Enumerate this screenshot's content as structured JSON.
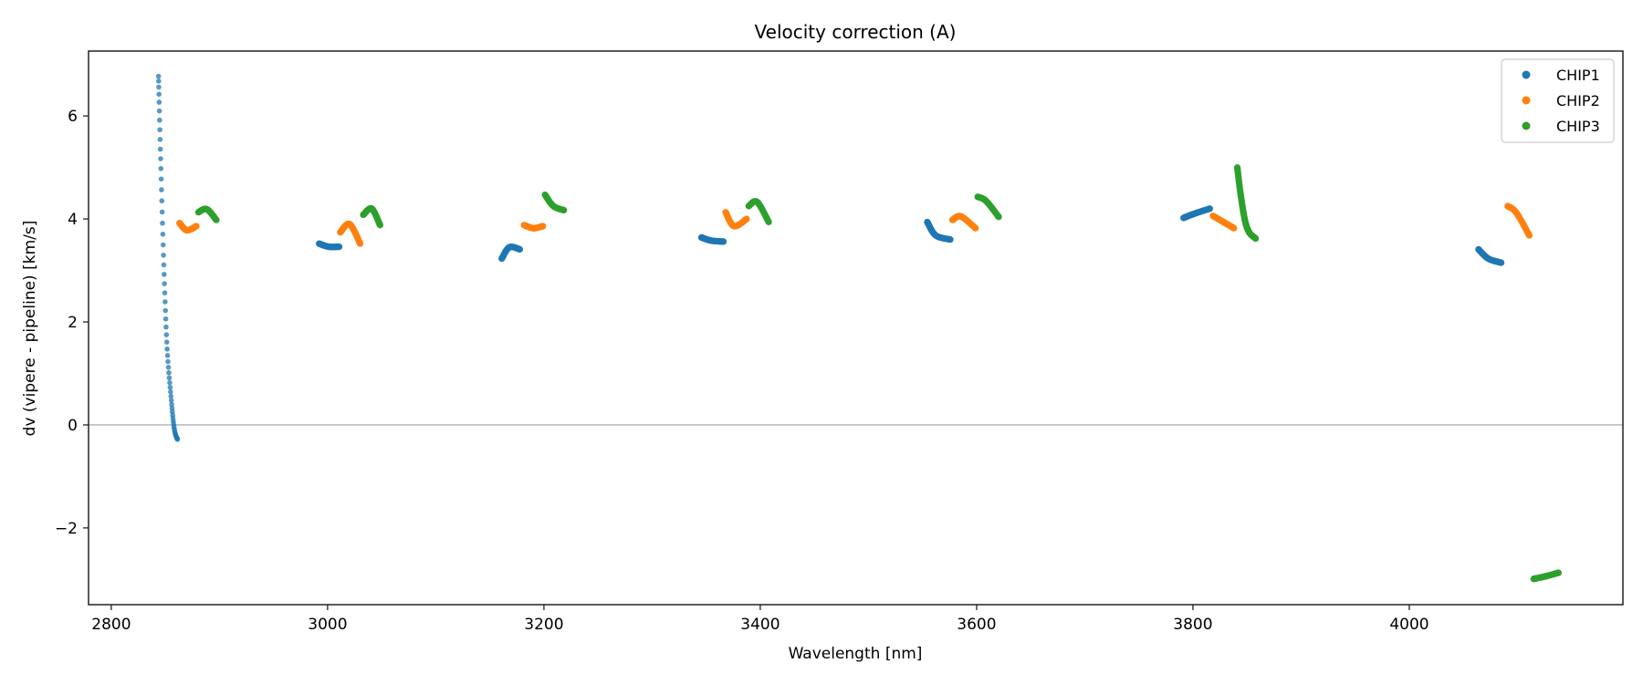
{
  "chart_data": {
    "type": "scatter",
    "title": "Velocity correction (A)",
    "xlabel": "Wavelength [nm]",
    "ylabel": "dv (vipere - pipeline) [km/s]",
    "xlim": [
      2779,
      4197.5
    ],
    "ylim": [
      -3.49,
      7.26
    ],
    "xticks": [
      2800,
      3000,
      3200,
      3400,
      3600,
      3800,
      4000
    ],
    "yticks": [
      -2,
      0,
      2,
      4,
      6
    ],
    "ytick_labels": [
      "−2",
      "0",
      "2",
      "4",
      "6"
    ],
    "hline": 0,
    "legend": {
      "placement": "top-right",
      "entries": [
        "CHIP1",
        "CHIP2",
        "CHIP3"
      ]
    },
    "colors": {
      "CHIP1": "#1f77b4",
      "CHIP2": "#ff7f0e",
      "CHIP3": "#2ca02c",
      "zero_line": "#b0b0b0"
    },
    "segments": [
      {
        "series": "CHIP1",
        "n": 60,
        "sparse": true,
        "x": [
          2843.7,
          2845.6,
          2848.5,
          2851.5,
          2855.3,
          2858.3,
          2861.2
        ],
        "y": [
          6.77,
          5.2,
          3.17,
          1.54,
          0.53,
          -0.08,
          -0.28
        ]
      },
      {
        "series": "CHIP2",
        "n": 40,
        "x": [
          2863.1,
          2869.9,
          2878.6
        ],
        "y": [
          3.92,
          3.78,
          3.86
        ]
      },
      {
        "series": "CHIP3",
        "n": 40,
        "x": [
          2880.6,
          2888.3,
          2897.1
        ],
        "y": [
          4.13,
          4.19,
          3.98
        ]
      },
      {
        "series": "CHIP1",
        "n": 40,
        "x": [
          2992.2,
          3001,
          3010.7
        ],
        "y": [
          3.52,
          3.46,
          3.46
        ]
      },
      {
        "series": "CHIP2",
        "n": 40,
        "x": [
          3011.7,
          3020.4,
          3030.1
        ],
        "y": [
          3.74,
          3.9,
          3.52
        ]
      },
      {
        "series": "CHIP3",
        "n": 40,
        "x": [
          3033,
          3040.8,
          3048.5
        ],
        "y": [
          4.08,
          4.2,
          3.88
        ]
      },
      {
        "series": "CHIP1",
        "n": 40,
        "x": [
          3161,
          3168,
          3177.7
        ],
        "y": [
          3.23,
          3.45,
          3.41
        ]
      },
      {
        "series": "CHIP2",
        "n": 40,
        "x": [
          3181.6,
          3190.3,
          3199
        ],
        "y": [
          3.88,
          3.82,
          3.86
        ]
      },
      {
        "series": "CHIP3",
        "n": 40,
        "x": [
          3201,
          3208.7,
          3218.4
        ],
        "y": [
          4.47,
          4.25,
          4.17
        ]
      },
      {
        "series": "CHIP1",
        "n": 40,
        "x": [
          3345.6,
          3354.4,
          3366
        ],
        "y": [
          3.64,
          3.58,
          3.56
        ]
      },
      {
        "series": "CHIP2",
        "n": 40,
        "x": [
          3368,
          3375.7,
          3387.4
        ],
        "y": [
          4.13,
          3.86,
          4.0
        ]
      },
      {
        "series": "CHIP3",
        "n": 40,
        "x": [
          3389.3,
          3397.1,
          3407.8
        ],
        "y": [
          4.25,
          4.33,
          3.94
        ]
      },
      {
        "series": "CHIP1",
        "n": 40,
        "x": [
          3554.4,
          3562.2,
          3575.7
        ],
        "y": [
          3.94,
          3.68,
          3.6
        ]
      },
      {
        "series": "CHIP2",
        "n": 40,
        "x": [
          3577.7,
          3585.4,
          3599
        ],
        "y": [
          3.98,
          4.05,
          3.82
        ]
      },
      {
        "series": "CHIP3",
        "n": 40,
        "x": [
          3601,
          3608.7,
          3620.4
        ],
        "y": [
          4.43,
          4.35,
          4.04
        ]
      },
      {
        "series": "CHIP1",
        "n": 40,
        "x": [
          3791.3,
          3801,
          3815.6
        ],
        "y": [
          4.02,
          4.1,
          4.2
        ]
      },
      {
        "series": "CHIP2",
        "n": 40,
        "x": [
          3818.5,
          3828.2,
          3837.9
        ],
        "y": [
          4.06,
          3.94,
          3.82
        ]
      },
      {
        "series": "CHIP3",
        "n": 70,
        "x": [
          3841,
          3844,
          3848,
          3852,
          3858
        ],
        "y": [
          5.0,
          4.49,
          3.98,
          3.74,
          3.62
        ]
      },
      {
        "series": "CHIP1",
        "n": 40,
        "x": [
          4064,
          4073,
          4085
        ],
        "y": [
          3.41,
          3.23,
          3.15
        ]
      },
      {
        "series": "CHIP2",
        "n": 40,
        "x": [
          4091,
          4099,
          4111
        ],
        "y": [
          4.25,
          4.12,
          3.68
        ]
      },
      {
        "series": "CHIP3",
        "n": 40,
        "x": [
          4115,
          4126,
          4138
        ],
        "y": [
          -2.99,
          -2.94,
          -2.87
        ]
      }
    ]
  }
}
